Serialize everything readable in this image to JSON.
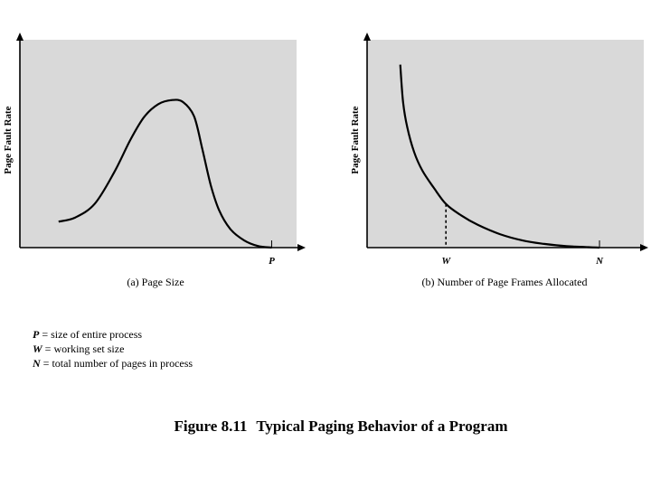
{
  "chart_data": [
    {
      "type": "line",
      "panel": "a",
      "caption": "(a) Page Size",
      "ylabel": "Page Fault Rate",
      "xlabel": "",
      "xlim": [
        0,
        10
      ],
      "ylim": [
        0,
        10
      ],
      "x_ticks": [
        {
          "value": 9.1,
          "label": "P"
        }
      ],
      "series": [
        {
          "name": "page fault rate vs page size",
          "x": [
            1.4,
            2.0,
            2.7,
            3.4,
            4.0,
            4.5,
            5.0,
            5.5,
            5.9,
            6.3,
            6.6,
            6.9,
            7.2,
            7.6,
            8.1,
            8.6,
            9.1
          ],
          "y": [
            1.25,
            1.45,
            2.1,
            3.6,
            5.2,
            6.3,
            6.9,
            7.1,
            7.0,
            6.3,
            4.7,
            3.0,
            1.8,
            0.9,
            0.35,
            0.08,
            0.0
          ]
        }
      ],
      "grid": false,
      "background": "#d9d9d9"
    },
    {
      "type": "line",
      "panel": "b",
      "caption": "(b) Number of Page Frames Allocated",
      "ylabel": "Page Fault Rate",
      "xlabel": "",
      "xlim": [
        0,
        10
      ],
      "ylim": [
        0,
        10
      ],
      "x_ticks": [
        {
          "value": 2.85,
          "label": "W"
        },
        {
          "value": 8.4,
          "label": "N"
        }
      ],
      "series": [
        {
          "name": "page fault rate vs frames allocated",
          "x": [
            1.2,
            1.3,
            1.45,
            1.7,
            2.0,
            2.4,
            2.85,
            3.4,
            4.0,
            4.8,
            5.6,
            6.4,
            7.2,
            8.0,
            8.4
          ],
          "y": [
            8.8,
            7.0,
            5.8,
            4.6,
            3.7,
            2.9,
            2.1,
            1.55,
            1.1,
            0.65,
            0.35,
            0.18,
            0.07,
            0.02,
            0.0
          ]
        }
      ],
      "dashed_markers": [
        {
          "x": 2.85,
          "y": 2.1
        }
      ],
      "grid": false,
      "background": "#d9d9d9"
    }
  ],
  "legend": [
    {
      "symbol": "P",
      "text": " = size of entire process"
    },
    {
      "symbol": "W",
      "text": " = working set size"
    },
    {
      "symbol": "N",
      "text": " = total number of pages in process"
    }
  ],
  "figure": {
    "number": "Figure 8.11",
    "title": "Typical Paging Behavior of a Program"
  },
  "colors": {
    "plot_bg": "#d9d9d9",
    "ink": "#000000"
  }
}
